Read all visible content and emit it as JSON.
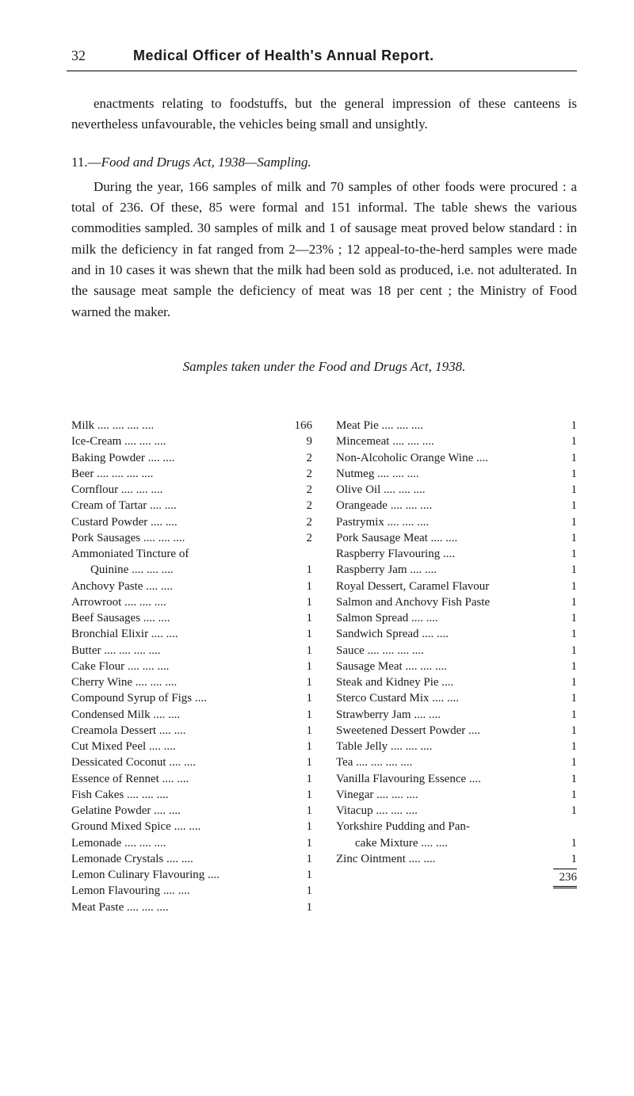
{
  "page_number": "32",
  "page_title": "Medical Officer of Health's Annual Report.",
  "intro_para": "enactments relating to foodstuffs, but the general impression of these canteens is nevertheless unfavourable, the vehicles being small and unsightly.",
  "section_number": "11.—",
  "section_title": "Food and Drugs Act, 1938—Sampling.",
  "main_para": "During the year, 166 samples of milk and 70 samples of other foods were procured : a total of 236. Of these, 85 were formal and 151 informal. The table shews the various commodities sampled. 30 samples of milk and 1 of sausage meat proved below standard : in milk the deficiency in fat ranged from 2—23% ; 12 appeal-to-the-herd samples were made and in 10 cases it was shewn that the milk had been sold as produced, i.e. not adulterated. In the sausage meat sample the deficiency of meat was 18 per cent ; the Ministry of Food warned the maker.",
  "samples_title": "Samples taken under the Food and Drugs Act, 1938.",
  "left_items": [
    {
      "label": "Milk  ....      ....     ....   ....",
      "value": "166"
    },
    {
      "label": "Ice-Cream       ....    ....    ....",
      "value": "9"
    },
    {
      "label": "Baking Powder        ....   ....",
      "value": "2"
    },
    {
      "label": "Beer    ....     ....     ....    ....",
      "value": "2"
    },
    {
      "label": "Cornflour       ....    ....    ....",
      "value": "2"
    },
    {
      "label": "Cream of Tartar       ....    ....",
      "value": "2"
    },
    {
      "label": "Custard Powder       ....    ....",
      "value": "2"
    },
    {
      "label": "Pork Sausages ....    ....    ....",
      "value": "2"
    },
    {
      "label": "Ammoniated Tincture of",
      "value": ""
    },
    {
      "label": "Quinine       ....    ....    ....",
      "value": "1",
      "indent": true
    },
    {
      "label": "Anchovy Paste      ....    ....",
      "value": "1"
    },
    {
      "label": "Arrowroot       ....    ....    ....",
      "value": "1"
    },
    {
      "label": "Beef Sausages        ....    ....",
      "value": "1"
    },
    {
      "label": "Bronchial Elixir      ....    ....",
      "value": "1"
    },
    {
      "label": "Butter  ....      ....    ....    ....",
      "value": "1"
    },
    {
      "label": "Cake Flour      ....    ....    ....",
      "value": "1"
    },
    {
      "label": "Cherry Wine   ....    ....    ....",
      "value": "1"
    },
    {
      "label": "Compound Syrup of Figs   ....",
      "value": "1"
    },
    {
      "label": "Condensed Milk       ....    ....",
      "value": "1"
    },
    {
      "label": "Creamola Dessert     ....    ....",
      "value": "1"
    },
    {
      "label": "Cut Mixed Peel        ....    ....",
      "value": "1"
    },
    {
      "label": "Dessicated Coconut   ....    ....",
      "value": "1"
    },
    {
      "label": "Essence of Rennet    ....    ....",
      "value": "1"
    },
    {
      "label": "Fish Cakes      ....    ....    ....",
      "value": "1"
    },
    {
      "label": "Gelatine Powder      ....    ....",
      "value": "1"
    },
    {
      "label": "Ground Mixed Spice ....    ....",
      "value": "1"
    },
    {
      "label": "Lemonade       ....    ....    ....",
      "value": "1"
    },
    {
      "label": "Lemonade Crystals   ....    ....",
      "value": "1"
    },
    {
      "label": "Lemon Culinary Flavouring ....",
      "value": "1"
    },
    {
      "label": "Lemon Flavouring    ....    ....",
      "value": "1"
    },
    {
      "label": "Meat Paste      ....    ....    ....",
      "value": "1"
    }
  ],
  "right_items": [
    {
      "label": "Meat Pie         ....    ....    ....",
      "value": "1"
    },
    {
      "label": "Mincemeat       ....    ....    ....",
      "value": "1"
    },
    {
      "label": "Non-Alcoholic Orange Wine ....",
      "value": "1"
    },
    {
      "label": "Nutmeg          ....    ....    ....",
      "value": "1"
    },
    {
      "label": "Olive Oil         ....    ....    ....",
      "value": "1"
    },
    {
      "label": "Orangeade       ....    ....    ....",
      "value": "1"
    },
    {
      "label": "Pastrymix       ....    ....    ....",
      "value": "1"
    },
    {
      "label": "Pork Sausage Meat   ....    ....",
      "value": "1"
    },
    {
      "label": "Raspberry Flavouring     ....",
      "value": "1"
    },
    {
      "label": "Raspberry Jam        ....    ....",
      "value": "1"
    },
    {
      "label": "Royal Dessert, Caramel Flavour",
      "value": "1"
    },
    {
      "label": "Salmon and Anchovy Fish Paste",
      "value": "1"
    },
    {
      "label": "Salmon Spread        ....    ....",
      "value": "1"
    },
    {
      "label": "Sandwich Spread     ....    ....",
      "value": "1"
    },
    {
      "label": "Sauce   ....      ....    ....    ....",
      "value": "1"
    },
    {
      "label": "Sausage Meat  ....    ....    ....",
      "value": "1"
    },
    {
      "label": "Steak and Kidney Pie    ....",
      "value": "1"
    },
    {
      "label": "Sterco Custard Mix  ....    ....",
      "value": "1"
    },
    {
      "label": "Strawberry Jam       ....    ....",
      "value": "1"
    },
    {
      "label": "Sweetened Dessert Powder  ....",
      "value": "1"
    },
    {
      "label": "Table Jelly      ....    ....    ....",
      "value": "1"
    },
    {
      "label": "Tea      ....      ....    ....    ....",
      "value": "1"
    },
    {
      "label": "Vanilla Flavouring Essence ....",
      "value": "1"
    },
    {
      "label": "Vinegar          ....    ....    ....",
      "value": "1"
    },
    {
      "label": "Vitacup          ....    ....    ....",
      "value": "1"
    },
    {
      "label": "Yorkshire Pudding and Pan-",
      "value": ""
    },
    {
      "label": "cake Mixture      ....    ....",
      "value": "1",
      "indent": true
    },
    {
      "label": "Zinc Ointment        ....    ....",
      "value": "1"
    }
  ],
  "total": "236"
}
